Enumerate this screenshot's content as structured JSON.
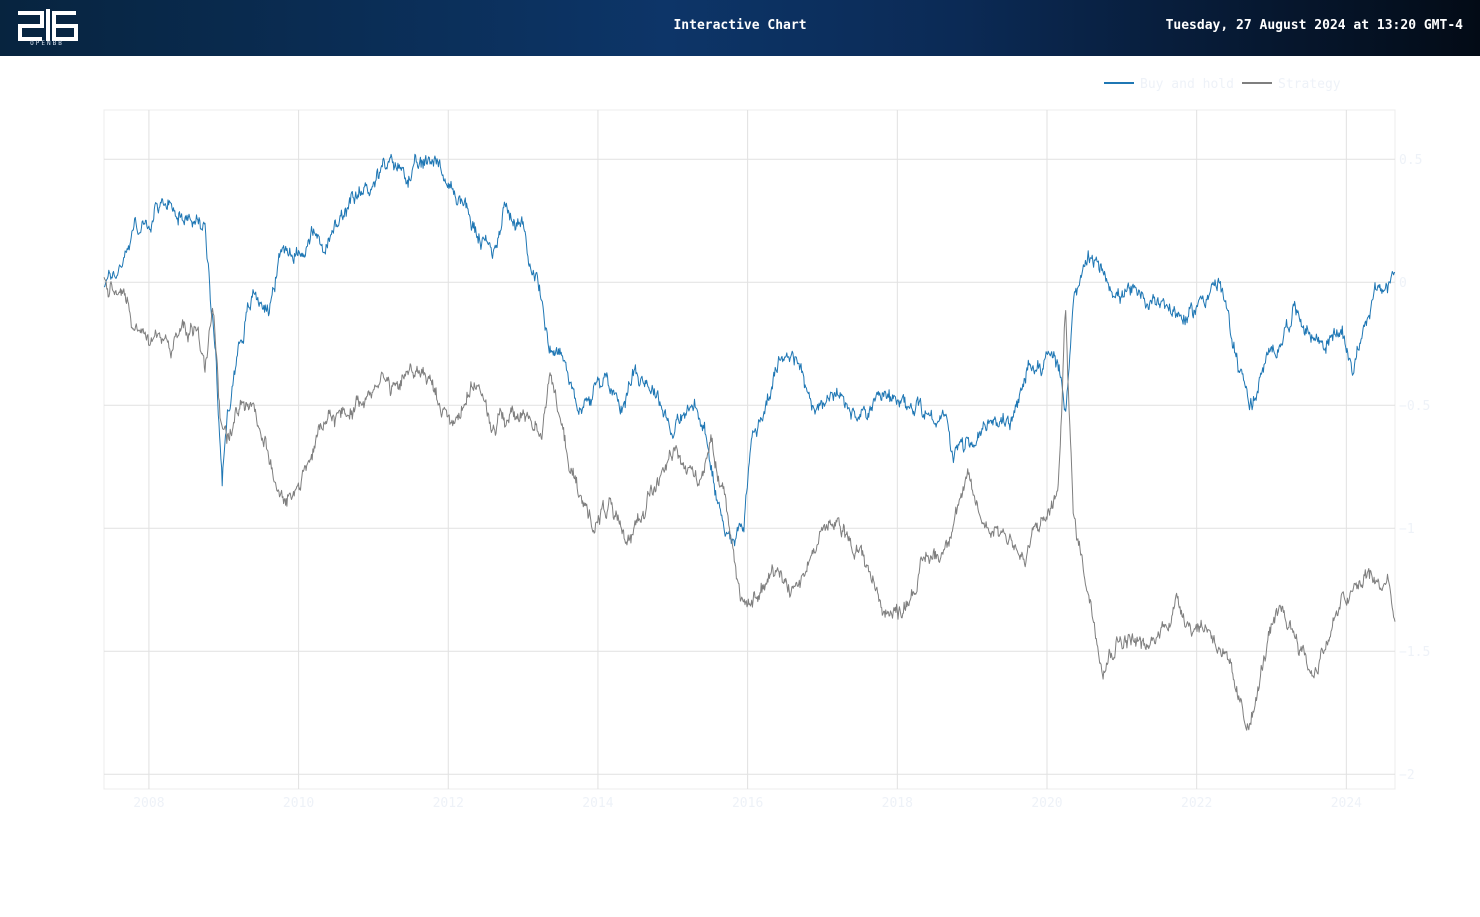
{
  "header": {
    "logo_text": "OPENBB",
    "title": "Interactive Chart",
    "datetime": "Tuesday, 27 August 2024 at 13:20 GMT-4"
  },
  "colors": {
    "buy_and_hold": "#1f77b4",
    "strategy": "#7f7f7f",
    "grid": "#e1e1e1",
    "tick_text": "#eef2f8"
  },
  "chart_data": {
    "type": "line",
    "title": "",
    "xlabel": "",
    "ylabel": "",
    "x_range": [
      2007.4,
      2024.65
    ],
    "ylim": [
      -2.06,
      0.7
    ],
    "x_ticks": [
      2008,
      2010,
      2012,
      2014,
      2016,
      2018,
      2020,
      2022,
      2024
    ],
    "y_ticks": [
      0.5,
      0,
      -0.5,
      -1,
      -1.5,
      -2
    ],
    "y_tick_labels": [
      "0.5",
      "0",
      "−0.5",
      "−1",
      "−1.5",
      "−2"
    ],
    "grid": true,
    "legend_position": "top-right",
    "series": [
      {
        "name": "Buy and hold",
        "color": "#1f77b4",
        "points": [
          [
            2007.4,
            0.0
          ],
          [
            2007.6,
            0.05
          ],
          [
            2007.8,
            0.23
          ],
          [
            2008.0,
            0.22
          ],
          [
            2008.2,
            0.33
          ],
          [
            2008.4,
            0.3
          ],
          [
            2008.6,
            0.25
          ],
          [
            2008.75,
            0.22
          ],
          [
            2008.9,
            -0.3
          ],
          [
            2008.98,
            -0.8
          ],
          [
            2009.05,
            -0.55
          ],
          [
            2009.2,
            -0.25
          ],
          [
            2009.4,
            -0.05
          ],
          [
            2009.6,
            -0.1
          ],
          [
            2009.8,
            0.15
          ],
          [
            2010.0,
            0.12
          ],
          [
            2010.2,
            0.2
          ],
          [
            2010.35,
            0.13
          ],
          [
            2010.5,
            0.22
          ],
          [
            2010.7,
            0.3
          ],
          [
            2010.9,
            0.38
          ],
          [
            2011.1,
            0.45
          ],
          [
            2011.3,
            0.48
          ],
          [
            2011.5,
            0.43
          ],
          [
            2011.7,
            0.48
          ],
          [
            2011.85,
            0.52
          ],
          [
            2012.0,
            0.38
          ],
          [
            2012.2,
            0.33
          ],
          [
            2012.4,
            0.18
          ],
          [
            2012.6,
            0.12
          ],
          [
            2012.75,
            0.32
          ],
          [
            2013.0,
            0.2
          ],
          [
            2013.2,
            0.0
          ],
          [
            2013.35,
            -0.25
          ],
          [
            2013.5,
            -0.28
          ],
          [
            2013.65,
            -0.42
          ],
          [
            2013.8,
            -0.52
          ],
          [
            2013.95,
            -0.45
          ],
          [
            2014.1,
            -0.38
          ],
          [
            2014.3,
            -0.5
          ],
          [
            2014.5,
            -0.35
          ],
          [
            2014.65,
            -0.4
          ],
          [
            2014.8,
            -0.45
          ],
          [
            2015.0,
            -0.6
          ],
          [
            2015.15,
            -0.55
          ],
          [
            2015.3,
            -0.5
          ],
          [
            2015.45,
            -0.65
          ],
          [
            2015.6,
            -0.9
          ],
          [
            2015.8,
            -1.05
          ],
          [
            2015.95,
            -0.95
          ],
          [
            2016.05,
            -0.65
          ],
          [
            2016.2,
            -0.55
          ],
          [
            2016.35,
            -0.38
          ],
          [
            2016.55,
            -0.25
          ],
          [
            2016.75,
            -0.4
          ],
          [
            2016.9,
            -0.55
          ],
          [
            2017.1,
            -0.45
          ],
          [
            2017.3,
            -0.5
          ],
          [
            2017.5,
            -0.55
          ],
          [
            2017.7,
            -0.5
          ],
          [
            2017.9,
            -0.48
          ],
          [
            2018.1,
            -0.52
          ],
          [
            2018.3,
            -0.5
          ],
          [
            2018.5,
            -0.55
          ],
          [
            2018.65,
            -0.55
          ],
          [
            2018.75,
            -0.7
          ],
          [
            2018.95,
            -0.66
          ],
          [
            2019.15,
            -0.6
          ],
          [
            2019.35,
            -0.55
          ],
          [
            2019.55,
            -0.58
          ],
          [
            2019.75,
            -0.35
          ],
          [
            2019.95,
            -0.32
          ],
          [
            2020.1,
            -0.3
          ],
          [
            2020.25,
            -0.5
          ],
          [
            2020.35,
            -0.1
          ],
          [
            2020.55,
            0.08
          ],
          [
            2020.75,
            0.05
          ],
          [
            2020.95,
            -0.05
          ],
          [
            2021.15,
            -0.05
          ],
          [
            2021.3,
            -0.1
          ],
          [
            2021.5,
            -0.05
          ],
          [
            2021.7,
            -0.12
          ],
          [
            2021.9,
            -0.15
          ],
          [
            2022.1,
            -0.05
          ],
          [
            2022.3,
            0.0
          ],
          [
            2022.45,
            -0.2
          ],
          [
            2022.6,
            -0.38
          ],
          [
            2022.75,
            -0.5
          ],
          [
            2022.9,
            -0.35
          ],
          [
            2023.1,
            -0.25
          ],
          [
            2023.3,
            -0.1
          ],
          [
            2023.5,
            -0.2
          ],
          [
            2023.7,
            -0.25
          ],
          [
            2023.9,
            -0.2
          ],
          [
            2024.1,
            -0.35
          ],
          [
            2024.25,
            -0.15
          ],
          [
            2024.4,
            -0.05
          ],
          [
            2024.55,
            -0.02
          ],
          [
            2024.65,
            0.04
          ]
        ]
      },
      {
        "name": "Strategy",
        "color": "#7f7f7f",
        "points": [
          [
            2007.4,
            0.0
          ],
          [
            2007.55,
            0.0
          ],
          [
            2007.7,
            -0.1
          ],
          [
            2007.85,
            -0.22
          ],
          [
            2008.05,
            -0.22
          ],
          [
            2008.25,
            -0.25
          ],
          [
            2008.45,
            -0.2
          ],
          [
            2008.65,
            -0.2
          ],
          [
            2008.75,
            -0.35
          ],
          [
            2008.85,
            -0.1
          ],
          [
            2008.95,
            -0.55
          ],
          [
            2009.05,
            -0.65
          ],
          [
            2009.25,
            -0.45
          ],
          [
            2009.45,
            -0.55
          ],
          [
            2009.6,
            -0.7
          ],
          [
            2009.8,
            -0.9
          ],
          [
            2009.95,
            -0.85
          ],
          [
            2010.1,
            -0.75
          ],
          [
            2010.3,
            -0.6
          ],
          [
            2010.5,
            -0.55
          ],
          [
            2010.7,
            -0.52
          ],
          [
            2010.9,
            -0.45
          ],
          [
            2011.1,
            -0.38
          ],
          [
            2011.3,
            -0.45
          ],
          [
            2011.5,
            -0.35
          ],
          [
            2011.7,
            -0.38
          ],
          [
            2011.9,
            -0.5
          ],
          [
            2012.05,
            -0.58
          ],
          [
            2012.25,
            -0.45
          ],
          [
            2012.4,
            -0.4
          ],
          [
            2012.55,
            -0.6
          ],
          [
            2012.7,
            -0.55
          ],
          [
            2012.9,
            -0.55
          ],
          [
            2013.1,
            -0.55
          ],
          [
            2013.25,
            -0.6
          ],
          [
            2013.35,
            -0.35
          ],
          [
            2013.55,
            -0.65
          ],
          [
            2013.75,
            -0.88
          ],
          [
            2013.95,
            -0.98
          ],
          [
            2014.15,
            -0.9
          ],
          [
            2014.35,
            -1.08
          ],
          [
            2014.55,
            -0.95
          ],
          [
            2014.7,
            -0.85
          ],
          [
            2014.85,
            -0.8
          ],
          [
            2015.0,
            -0.7
          ],
          [
            2015.15,
            -0.75
          ],
          [
            2015.35,
            -0.8
          ],
          [
            2015.5,
            -0.65
          ],
          [
            2015.7,
            -0.85
          ],
          [
            2015.85,
            -1.2
          ],
          [
            2016.0,
            -1.35
          ],
          [
            2016.2,
            -1.25
          ],
          [
            2016.4,
            -1.15
          ],
          [
            2016.6,
            -1.25
          ],
          [
            2016.8,
            -1.15
          ],
          [
            2017.0,
            -1.0
          ],
          [
            2017.2,
            -1.0
          ],
          [
            2017.4,
            -1.05
          ],
          [
            2017.6,
            -1.15
          ],
          [
            2017.8,
            -1.32
          ],
          [
            2018.0,
            -1.35
          ],
          [
            2018.2,
            -1.25
          ],
          [
            2018.4,
            -1.12
          ],
          [
            2018.6,
            -1.1
          ],
          [
            2018.8,
            -0.9
          ],
          [
            2018.95,
            -0.82
          ],
          [
            2019.15,
            -0.98
          ],
          [
            2019.35,
            -1.0
          ],
          [
            2019.55,
            -1.05
          ],
          [
            2019.7,
            -1.15
          ],
          [
            2019.85,
            -1.0
          ],
          [
            2020.0,
            -0.95
          ],
          [
            2020.15,
            -0.85
          ],
          [
            2020.25,
            -0.1
          ],
          [
            2020.35,
            -0.95
          ],
          [
            2020.55,
            -1.25
          ],
          [
            2020.75,
            -1.55
          ],
          [
            2020.95,
            -1.45
          ],
          [
            2021.15,
            -1.45
          ],
          [
            2021.35,
            -1.5
          ],
          [
            2021.55,
            -1.4
          ],
          [
            2021.75,
            -1.3
          ],
          [
            2021.95,
            -1.4
          ],
          [
            2022.15,
            -1.4
          ],
          [
            2022.35,
            -1.5
          ],
          [
            2022.5,
            -1.65
          ],
          [
            2022.65,
            -1.8
          ],
          [
            2022.8,
            -1.7
          ],
          [
            2022.95,
            -1.45
          ],
          [
            2023.15,
            -1.35
          ],
          [
            2023.35,
            -1.45
          ],
          [
            2023.55,
            -1.6
          ],
          [
            2023.75,
            -1.45
          ],
          [
            2023.95,
            -1.3
          ],
          [
            2024.15,
            -1.25
          ],
          [
            2024.3,
            -1.18
          ],
          [
            2024.45,
            -1.25
          ],
          [
            2024.55,
            -1.2
          ],
          [
            2024.65,
            -1.38
          ]
        ]
      }
    ]
  }
}
